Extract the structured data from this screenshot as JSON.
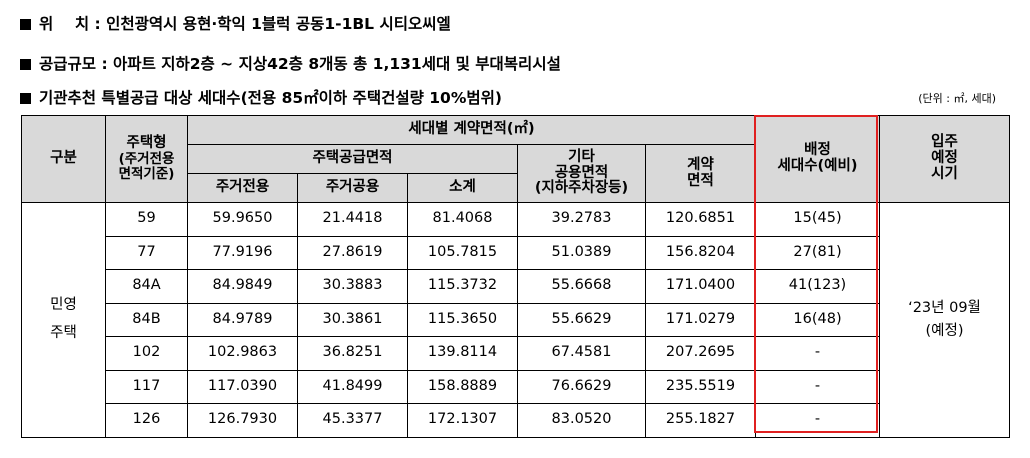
{
  "info": {
    "location_label": "위    치",
    "location_value": "인천광역시 용현·학익 1블럭 공동1-1BL 시티오씨엘",
    "scale_label": "공급규모",
    "scale_value": "아파트 지하2층 ~ 지상42층 8개동 총 1,131세대 및 부대복리시설",
    "special_title": "기관추천 특별공급 대상 세대수(전용 85㎡이하 주택건설량 10%범위)",
    "unit_note": "(단위 : ㎡, 세대)"
  },
  "table": {
    "headers": {
      "category": "구분",
      "type": "주택형",
      "type_sub": "(주거전용\n면적기준)",
      "contract_area": "세대별 계약면적(㎡)",
      "supply_area": "주택공급면적",
      "other_area": "기타\n공용면적\n(지하주차장등)",
      "contract_total": "계약\n면적",
      "allocated": "배정\n세대수(예비)",
      "move_in": "입주\n예정\n시기",
      "exclusive": "주거전용",
      "common": "주거공용",
      "subtotal": "소계"
    },
    "category_value": "민영\n주택",
    "move_in_value": "‘23년 09월\n(예정)",
    "rows": [
      {
        "type": "59",
        "exclusive": "59.9650",
        "common": "21.4418",
        "subtotal": "81.4068",
        "other": "39.2783",
        "contract": "120.6851",
        "allocated": "15(45)"
      },
      {
        "type": "77",
        "exclusive": "77.9196",
        "common": "27.8619",
        "subtotal": "105.7815",
        "other": "51.0389",
        "contract": "156.8204",
        "allocated": "27(81)"
      },
      {
        "type": "84A",
        "exclusive": "84.9849",
        "common": "30.3883",
        "subtotal": "115.3732",
        "other": "55.6668",
        "contract": "171.0400",
        "allocated": "41(123)"
      },
      {
        "type": "84B",
        "exclusive": "84.9789",
        "common": "30.3861",
        "subtotal": "115.3650",
        "other": "55.6629",
        "contract": "171.0279",
        "allocated": "16(48)"
      },
      {
        "type": "102",
        "exclusive": "102.9863",
        "common": "36.8251",
        "subtotal": "139.8114",
        "other": "67.4581",
        "contract": "207.2695",
        "allocated": "-"
      },
      {
        "type": "117",
        "exclusive": "117.0390",
        "common": "41.8499",
        "subtotal": "158.8889",
        "other": "76.6629",
        "contract": "235.5519",
        "allocated": "-"
      },
      {
        "type": "126",
        "exclusive": "126.7930",
        "common": "45.3377",
        "subtotal": "172.1307",
        "other": "83.0520",
        "contract": "255.1827",
        "allocated": "-"
      }
    ]
  },
  "colors": {
    "header_bg": "#d9d9d9",
    "highlight_border": "#e02020"
  }
}
